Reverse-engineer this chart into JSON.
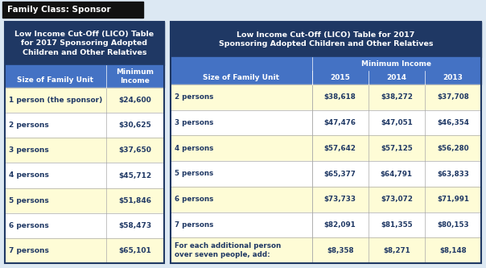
{
  "title": "Family Class: Sponsor",
  "bg_color": "#dce8f3",
  "title_bg": "#111111",
  "title_fg": "#ffffff",
  "dark_blue": "#1f3864",
  "mid_blue": "#4472c4",
  "row_bg_alt": "#fefcd6",
  "row_bg_white": "#ffffff",
  "border_color": "#aaaaaa",
  "left_table": {
    "header": "Low Income Cut-Off (LICO) Table\nfor 2017 Sponsoring Adopted\nChildren and Other Relatives",
    "col1_header": "Size of Family Unit",
    "col2_header": "Minimum\nIncome",
    "rows": [
      [
        "1 person (the sponsor)",
        "$24,600"
      ],
      [
        "2 persons",
        "$30,625"
      ],
      [
        "3 persons",
        "$37,650"
      ],
      [
        "4 persons",
        "$45,712"
      ],
      [
        "5 persons",
        "$51,846"
      ],
      [
        "6 persons",
        "$58,473"
      ],
      [
        "7 persons",
        "$65,101"
      ]
    ]
  },
  "right_table": {
    "header": "Low Income Cut-Off (LICO) Table for 2017\nSponsoring Adopted Children and Other Relatives",
    "col1_header": "Size of Family Unit",
    "subheader": "Minimum Income",
    "year_headers": [
      "2015",
      "2014",
      "2013"
    ],
    "rows": [
      [
        "2 persons",
        "$38,618",
        "$38,272",
        "$37,708"
      ],
      [
        "3 persons",
        "$47,476",
        "$47,051",
        "$46,354"
      ],
      [
        "4 persons",
        "$57,642",
        "$57,125",
        "$56,280"
      ],
      [
        "5 persons",
        "$65,377",
        "$64,791",
        "$63,833"
      ],
      [
        "6 persons",
        "$73,733",
        "$73,072",
        "$71,991"
      ],
      [
        "7 persons",
        "$82,091",
        "$81,355",
        "$80,153"
      ],
      [
        "For each additional person\nover seven people, add:",
        "$8,358",
        "$8,271",
        "$8,148"
      ]
    ]
  },
  "fig_w": 6.04,
  "fig_h": 3.33,
  "dpi": 100
}
